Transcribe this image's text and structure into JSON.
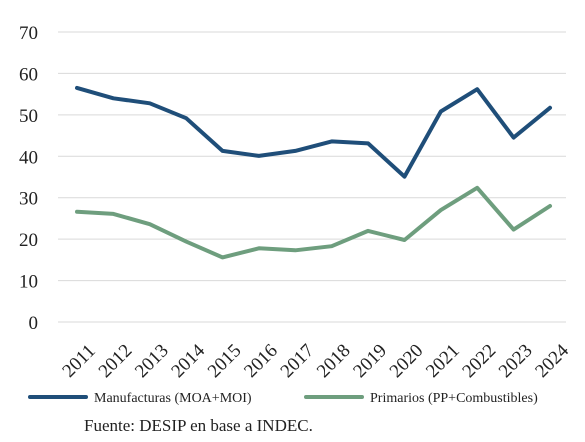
{
  "chart_data": {
    "type": "line",
    "title": "",
    "xlabel": "",
    "ylabel": "",
    "categories": [
      "2011",
      "2012",
      "2013",
      "2014",
      "2015",
      "2016",
      "2017",
      "2018",
      "2019",
      "2020",
      "2021",
      "2022",
      "2023",
      "2024"
    ],
    "ylim": [
      0,
      70
    ],
    "yticks": [
      "0",
      "10",
      "20",
      "30",
      "40",
      "50",
      "60",
      "70"
    ],
    "grid": "horizontal",
    "legend_position": "bottom",
    "series": [
      {
        "name": "Manufacturas (MOA+MOI)",
        "color": "#1f4e79",
        "values": [
          56.5,
          54.0,
          52.8,
          49.2,
          41.3,
          40.1,
          41.3,
          43.6,
          43.1,
          35.1,
          50.8,
          56.2,
          44.5,
          51.7
        ]
      },
      {
        "name": "Primarios (PP+Combustibles)",
        "color": "#6e9e7e",
        "values": [
          26.6,
          26.1,
          23.6,
          19.4,
          15.6,
          17.8,
          17.3,
          18.3,
          22.0,
          19.8,
          27.0,
          32.4,
          22.3,
          28.0
        ]
      }
    ]
  },
  "source": "Fuente: DESIP en base a INDEC."
}
